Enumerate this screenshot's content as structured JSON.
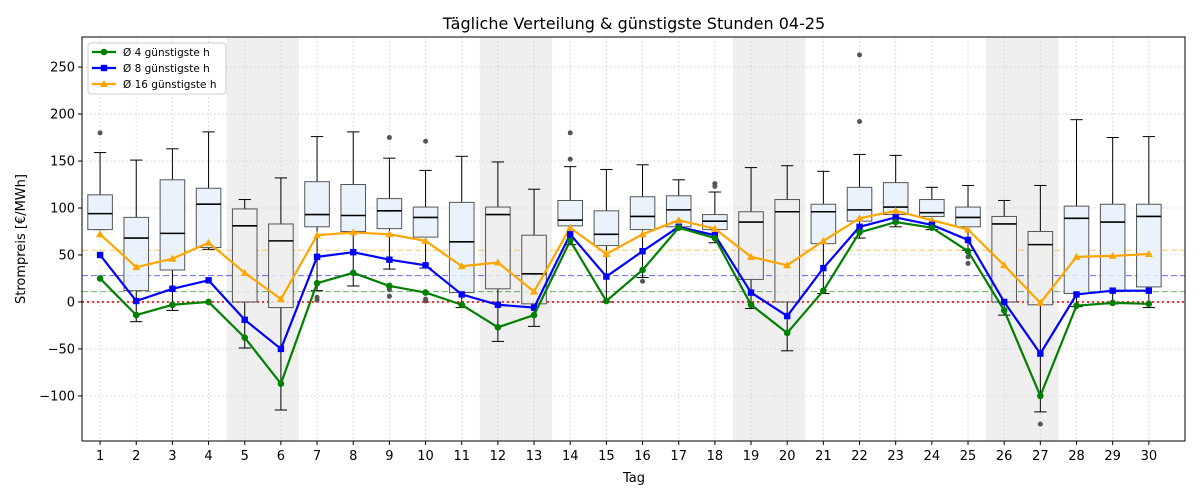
{
  "chart_data": {
    "type": "box+line",
    "title": "Tägliche Verteilung & günstigste Stunden 04-25",
    "xlabel": "Tag",
    "ylabel": "Strompreis [€/MWh]",
    "ylim": [
      -148,
      282
    ],
    "yticks": [
      -100,
      -50,
      0,
      50,
      100,
      150,
      200,
      250
    ],
    "ytick_labels": [
      "−100",
      "−50",
      "0",
      "50",
      "100",
      "150",
      "200",
      "250"
    ],
    "categories": [
      "1",
      "2",
      "3",
      "4",
      "5",
      "6",
      "7",
      "8",
      "9",
      "10",
      "11",
      "12",
      "13",
      "14",
      "15",
      "16",
      "17",
      "18",
      "19",
      "20",
      "21",
      "22",
      "23",
      "24",
      "25",
      "26",
      "27",
      "28",
      "29",
      "30"
    ],
    "grid": true,
    "legend_position": "top-left",
    "weekend_days": [
      5,
      6,
      12,
      13,
      19,
      20,
      26,
      27
    ],
    "box_colors": {
      "weekday": "#e6f1fa",
      "weekend": "#eeeeee"
    },
    "boxes": [
      {
        "day": 1,
        "whislo": 77,
        "q1": 77,
        "med": 94,
        "q3": 114,
        "whishi": 159,
        "fliers": [
          180
        ]
      },
      {
        "day": 2,
        "whislo": -21,
        "q1": 12,
        "med": 68,
        "q3": 90,
        "whishi": 151,
        "fliers": []
      },
      {
        "day": 3,
        "whislo": -9,
        "q1": 34,
        "med": 73,
        "q3": 130,
        "whishi": 163,
        "fliers": []
      },
      {
        "day": 4,
        "whislo": 56,
        "q1": 58,
        "med": 104,
        "q3": 121,
        "whishi": 181,
        "fliers": []
      },
      {
        "day": 5,
        "whislo": -49,
        "q1": 0,
        "med": 81,
        "q3": 99,
        "whishi": 109,
        "fliers": []
      },
      {
        "day": 6,
        "whislo": -115,
        "q1": -6,
        "med": 65,
        "q3": 83,
        "whishi": 132,
        "fliers": []
      },
      {
        "day": 7,
        "whislo": 12,
        "q1": 80,
        "med": 93,
        "q3": 128,
        "whishi": 176,
        "fliers": [
          5,
          2
        ]
      },
      {
        "day": 8,
        "whislo": 17,
        "q1": 75,
        "med": 92,
        "q3": 125,
        "whishi": 181,
        "fliers": []
      },
      {
        "day": 9,
        "whislo": 35,
        "q1": 78,
        "med": 97,
        "q3": 110,
        "whishi": 153,
        "fliers": [
          175,
          13,
          6
        ]
      },
      {
        "day": 10,
        "whislo": 36,
        "q1": 69,
        "med": 90,
        "q3": 101,
        "whishi": 140,
        "fliers": [
          171,
          3,
          1
        ]
      },
      {
        "day": 11,
        "whislo": -6,
        "q1": 10,
        "med": 64,
        "q3": 106,
        "whishi": 155,
        "fliers": []
      },
      {
        "day": 12,
        "whislo": -42,
        "q1": 14,
        "med": 93,
        "q3": 101,
        "whishi": 149,
        "fliers": []
      },
      {
        "day": 13,
        "whislo": -26,
        "q1": -2,
        "med": 30,
        "q3": 71,
        "whishi": 120,
        "fliers": []
      },
      {
        "day": 14,
        "whislo": 61,
        "q1": 81,
        "med": 87,
        "q3": 108,
        "whishi": 144,
        "fliers": [
          180,
          152
        ]
      },
      {
        "day": 15,
        "whislo": 0,
        "q1": 60,
        "med": 72,
        "q3": 97,
        "whishi": 141,
        "fliers": []
      },
      {
        "day": 16,
        "whislo": 26,
        "q1": 77,
        "med": 91,
        "q3": 112,
        "whishi": 146,
        "fliers": [
          22
        ]
      },
      {
        "day": 17,
        "whislo": 77,
        "q1": 80,
        "med": 98,
        "q3": 113,
        "whishi": 130,
        "fliers": []
      },
      {
        "day": 18,
        "whislo": 63,
        "q1": 77,
        "med": 86,
        "q3": 93,
        "whishi": 117,
        "fliers": [
          126,
          123
        ]
      },
      {
        "day": 19,
        "whislo": -7,
        "q1": 24,
        "med": 85,
        "q3": 96,
        "whishi": 143,
        "fliers": []
      },
      {
        "day": 20,
        "whislo": -52,
        "q1": 0,
        "med": 96,
        "q3": 109,
        "whishi": 145,
        "fliers": []
      },
      {
        "day": 21,
        "whislo": 9,
        "q1": 62,
        "med": 96,
        "q3": 104,
        "whishi": 139,
        "fliers": []
      },
      {
        "day": 22,
        "whislo": 68,
        "q1": 86,
        "med": 98,
        "q3": 122,
        "whishi": 157,
        "fliers": [
          263,
          192
        ]
      },
      {
        "day": 23,
        "whislo": 80,
        "q1": 93,
        "med": 101,
        "q3": 127,
        "whishi": 156,
        "fliers": []
      },
      {
        "day": 24,
        "whislo": 77,
        "q1": 91,
        "med": 95,
        "q3": 109,
        "whishi": 122,
        "fliers": []
      },
      {
        "day": 25,
        "whislo": 55,
        "q1": 80,
        "med": 90,
        "q3": 101,
        "whishi": 124,
        "fliers": [
          48,
          41
        ]
      },
      {
        "day": 26,
        "whislo": -14,
        "q1": 0,
        "med": 83,
        "q3": 91,
        "whishi": 108,
        "fliers": []
      },
      {
        "day": 27,
        "whislo": -117,
        "q1": -3,
        "med": 61,
        "q3": 75,
        "whishi": 124,
        "fliers": [
          -130
        ]
      },
      {
        "day": 28,
        "whislo": -5,
        "q1": 9,
        "med": 89,
        "q3": 102,
        "whishi": 194,
        "fliers": []
      },
      {
        "day": 29,
        "whislo": -2,
        "q1": 11,
        "med": 85,
        "q3": 104,
        "whishi": 175,
        "fliers": []
      },
      {
        "day": 30,
        "whislo": -6,
        "q1": 16,
        "med": 91,
        "q3": 104,
        "whishi": 176,
        "fliers": []
      }
    ],
    "series": [
      {
        "name": "Ø 4 günstigste h",
        "color": "#008000",
        "marker": "circle",
        "values": [
          25,
          -14,
          -3,
          0,
          -38,
          -87,
          20,
          31,
          17,
          10,
          -3,
          -27,
          -14,
          65,
          1,
          34,
          79,
          68,
          -3,
          -33,
          12,
          74,
          85,
          79,
          54,
          -9,
          -100,
          -4,
          -1,
          -2
        ]
      },
      {
        "name": "Ø 8 günstigste h",
        "color": "#0000ff",
        "marker": "square",
        "values": [
          50,
          1,
          14,
          23,
          -19,
          -50,
          48,
          53,
          45,
          39,
          8,
          -3,
          -6,
          72,
          27,
          54,
          80,
          71,
          10,
          -15,
          36,
          80,
          90,
          82,
          66,
          0,
          -55,
          8,
          12,
          12
        ]
      },
      {
        "name": "Ø 16 günstigste h",
        "color": "#ffa500",
        "marker": "triangle",
        "values": [
          72,
          37,
          46,
          63,
          31,
          3,
          71,
          74,
          72,
          65,
          38,
          42,
          11,
          79,
          51,
          72,
          87,
          78,
          48,
          39,
          65,
          89,
          97,
          87,
          77,
          39,
          -1,
          48,
          49,
          51
        ]
      }
    ],
    "reference_lines": [
      {
        "value": 55,
        "color": "#ffa500",
        "style": "dashed"
      },
      {
        "value": 28,
        "color": "#0000ff",
        "style": "dashed"
      },
      {
        "value": 11,
        "color": "#008000",
        "style": "dashed"
      },
      {
        "value": 0,
        "color": "#ff0000",
        "style": "dotted"
      }
    ]
  }
}
